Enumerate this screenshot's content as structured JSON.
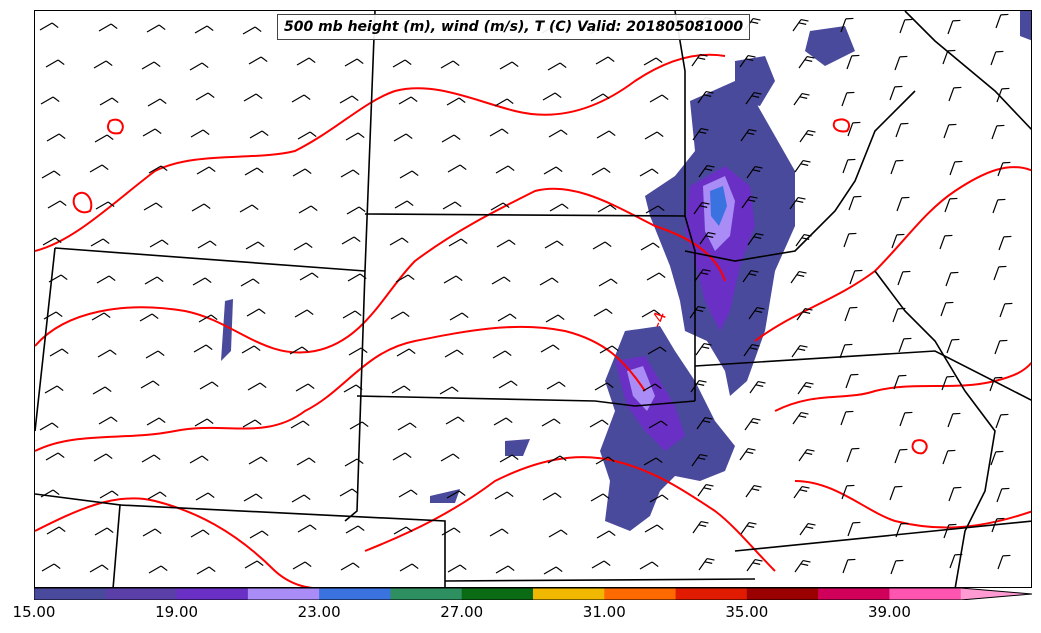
{
  "title": "500 mb height (m), wind (m/s), T (C) Valid: 201805081000",
  "contour_label": "-4",
  "colorbar": {
    "colors": [
      "#4a4a9c",
      "#5b3fa8",
      "#6a2fc4",
      "#a98cf5",
      "#3a72e0",
      "#2e9060",
      "#0b6b14",
      "#f0b800",
      "#ff6a00",
      "#e01b00",
      "#9b0000",
      "#d0005a",
      "#ff55b0",
      "#ff9ad2"
    ],
    "tick_labels": [
      "15.00",
      "19.00",
      "23.00",
      "27.00",
      "31.00",
      "35.00",
      "39.00"
    ]
  },
  "colors": {
    "contour": "#ff0000",
    "boundary": "#000000",
    "wind_barb": "#000000"
  }
}
